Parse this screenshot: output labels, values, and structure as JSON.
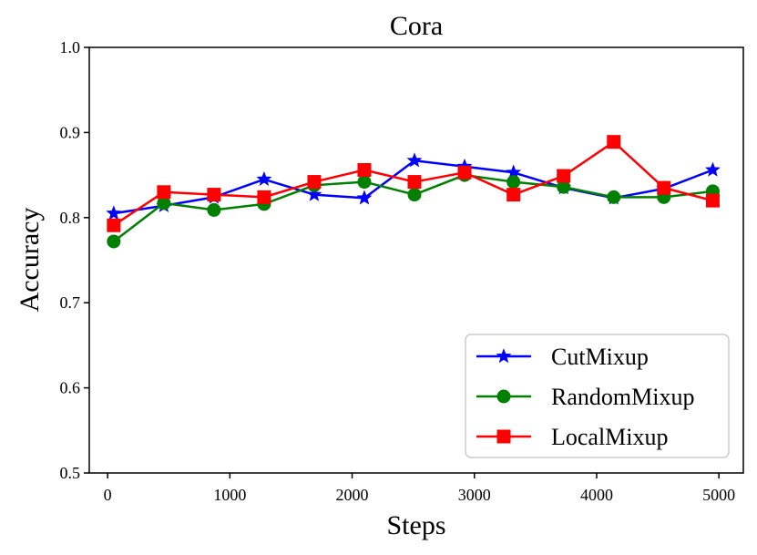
{
  "chart_data": {
    "type": "line",
    "title": "Cora",
    "xlabel": "Steps",
    "ylabel": "Accuracy",
    "xlim": [
      -150,
      5200
    ],
    "ylim": [
      0.5,
      1.0
    ],
    "xticks": [
      0,
      1000,
      2000,
      3000,
      4000,
      5000
    ],
    "yticks": [
      0.5,
      0.6,
      0.7,
      0.8,
      0.9,
      1.0
    ],
    "xtick_labels": [
      "0",
      "1000",
      "2000",
      "3000",
      "4000",
      "5000"
    ],
    "ytick_labels": [
      "0.5",
      "0.6",
      "0.7",
      "0.8",
      "0.9",
      "1.0"
    ],
    "grid": false,
    "legend_position": "lower-right",
    "x": [
      50,
      460,
      870,
      1280,
      1690,
      2100,
      2510,
      2920,
      3320,
      3730,
      4140,
      4550,
      4950
    ],
    "series": [
      {
        "name": "CutMixup",
        "color": "#0000ff",
        "marker": "star",
        "values": [
          0.805,
          0.814,
          0.824,
          0.845,
          0.827,
          0.823,
          0.867,
          0.86,
          0.853,
          0.835,
          0.823,
          0.834,
          0.856
        ]
      },
      {
        "name": "RandomMixup",
        "color": "#008000",
        "marker": "circle",
        "values": [
          0.772,
          0.817,
          0.809,
          0.816,
          0.838,
          0.842,
          0.827,
          0.85,
          0.842,
          0.836,
          0.824,
          0.824,
          0.831
        ]
      },
      {
        "name": "LocalMixup",
        "color": "#ff0000",
        "marker": "square",
        "values": [
          0.791,
          0.83,
          0.827,
          0.824,
          0.842,
          0.856,
          0.842,
          0.853,
          0.827,
          0.849,
          0.889,
          0.835,
          0.82
        ]
      }
    ]
  }
}
